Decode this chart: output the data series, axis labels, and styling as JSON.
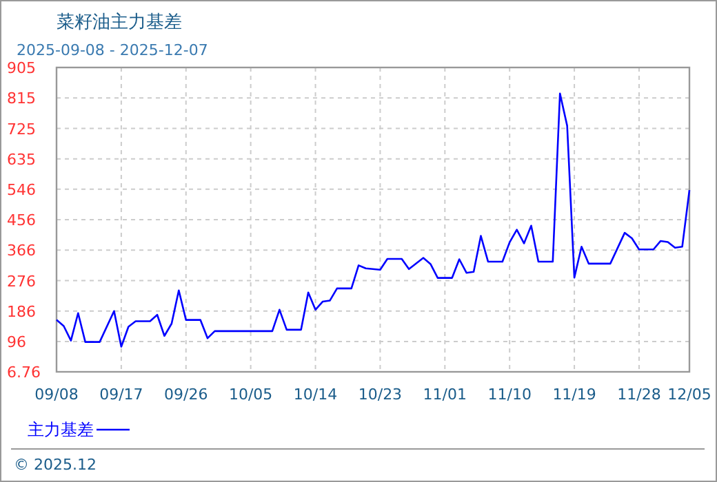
{
  "chart_data": {
    "type": "line",
    "title": "菜籽油主力基差",
    "subtitle": "2025-09-08 - 2025-12-07",
    "x": [
      "2025-09-08",
      "2025-09-09",
      "2025-09-10",
      "2025-09-11",
      "2025-09-12",
      "2025-09-14",
      "2025-09-16",
      "2025-09-17",
      "2025-09-18",
      "2025-09-19",
      "2025-09-21",
      "2025-09-22",
      "2025-09-23",
      "2025-09-24",
      "2025-09-25",
      "2025-09-26",
      "2025-09-28",
      "2025-09-29",
      "2025-09-30",
      "2025-10-08",
      "2025-10-09",
      "2025-10-10",
      "2025-10-12",
      "2025-10-13",
      "2025-10-14",
      "2025-10-15",
      "2025-10-16",
      "2025-10-17",
      "2025-10-19",
      "2025-10-20",
      "2025-10-21",
      "2025-10-23",
      "2025-10-24",
      "2025-10-26",
      "2025-10-27",
      "2025-10-29",
      "2025-10-30",
      "2025-10-31",
      "2025-11-02",
      "2025-11-03",
      "2025-11-04",
      "2025-11-05",
      "2025-11-06",
      "2025-11-07",
      "2025-11-09",
      "2025-11-10",
      "2025-11-11",
      "2025-11-12",
      "2025-11-13",
      "2025-11-14",
      "2025-11-16",
      "2025-11-17",
      "2025-11-18",
      "2025-11-19",
      "2025-11-20",
      "2025-11-21",
      "2025-11-24",
      "2025-11-26",
      "2025-11-27",
      "2025-11-28",
      "2025-11-30",
      "2025-12-01",
      "2025-12-02",
      "2025-12-03",
      "2025-12-04",
      "2025-12-05"
    ],
    "series": [
      {
        "name": "主力基差",
        "color": "#0000ff",
        "values": [
          160,
          142,
          99,
          180,
          95,
          95,
          186,
          81,
          140,
          156,
          156,
          175,
          113,
          149,
          247,
          160,
          160,
          106,
          127,
          127,
          190,
          131,
          131,
          241,
          190,
          214,
          217,
          253,
          253,
          321,
          312,
          308,
          340,
          340,
          310,
          343,
          325,
          284,
          284,
          339,
          299,
          302,
          408,
          332,
          332,
          389,
          426,
          386,
          438,
          332,
          332,
          828,
          733,
          285,
          376,
          326,
          326,
          417,
          401,
          368,
          368,
          393,
          390,
          373,
          376,
          543
        ]
      }
    ],
    "xlim": [
      "2025-09-08",
      "2025-12-05"
    ],
    "xticks": [
      {
        "value": "2025-09-08",
        "label": "09/08"
      },
      {
        "value": "2025-09-17",
        "label": "09/17"
      },
      {
        "value": "2025-09-26",
        "label": "09/26"
      },
      {
        "value": "2025-10-05",
        "label": "10/05"
      },
      {
        "value": "2025-10-14",
        "label": "10/14"
      },
      {
        "value": "2025-10-23",
        "label": "10/23"
      },
      {
        "value": "2025-11-01",
        "label": "11/01"
      },
      {
        "value": "2025-11-10",
        "label": "11/10"
      },
      {
        "value": "2025-11-19",
        "label": "11/19"
      },
      {
        "value": "2025-11-28",
        "label": "11/28"
      },
      {
        "value": "2025-12-05",
        "label": "12/05"
      }
    ],
    "ylim": [
      6.76,
      905
    ],
    "yticks": [
      6.76,
      96,
      186,
      276,
      366,
      456,
      546,
      635,
      725,
      815,
      905
    ],
    "grid": true,
    "legend": "bottom",
    "line_style": "solid",
    "marker": "none",
    "annotations": [
      "© 2025.12"
    ]
  }
}
